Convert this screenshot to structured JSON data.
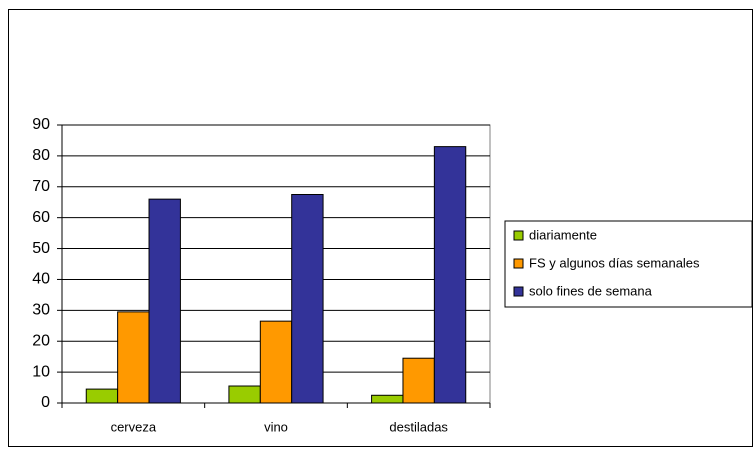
{
  "chart_data": {
    "type": "bar",
    "categories": [
      "cerveza",
      "vino",
      "destiladas"
    ],
    "series": [
      {
        "name": "diariamente",
        "color": "#99cc00",
        "values": [
          4.5,
          5.5,
          2.5
        ]
      },
      {
        "name": "FS y algunos días semanales",
        "color": "#ff9900",
        "values": [
          29.5,
          26.5,
          14.5
        ]
      },
      {
        "name": "solo fines de semana",
        "color": "#333399",
        "values": [
          66,
          67.5,
          83
        ]
      }
    ],
    "ylim": [
      0,
      90
    ],
    "yticks": [
      0,
      10,
      20,
      30,
      40,
      50,
      60,
      70,
      80,
      90
    ],
    "grid": true,
    "legend_position": "right"
  }
}
